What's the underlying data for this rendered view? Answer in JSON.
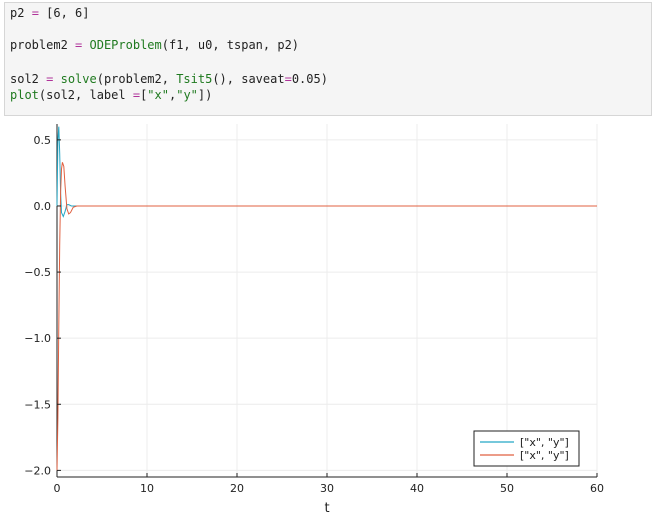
{
  "code_cell": {
    "lines": [
      {
        "segments": [
          {
            "text": "p2 ",
            "cls": ""
          },
          {
            "text": "=",
            "cls": "tok-op"
          },
          {
            "text": " [6, 6]",
            "cls": ""
          }
        ]
      },
      {
        "segments": []
      },
      {
        "segments": [
          {
            "text": "problem2 ",
            "cls": ""
          },
          {
            "text": "=",
            "cls": "tok-op"
          },
          {
            "text": " ",
            "cls": ""
          },
          {
            "text": "ODEProblem",
            "cls": "tok-fn"
          },
          {
            "text": "(f1, u0, tspan, p2)",
            "cls": ""
          }
        ]
      },
      {
        "segments": []
      },
      {
        "segments": [
          {
            "text": "sol2 ",
            "cls": ""
          },
          {
            "text": "=",
            "cls": "tok-op"
          },
          {
            "text": " ",
            "cls": ""
          },
          {
            "text": "solve",
            "cls": "tok-fn"
          },
          {
            "text": "(problem2, ",
            "cls": ""
          },
          {
            "text": "Tsit5",
            "cls": "tok-fn"
          },
          {
            "text": "(), saveat",
            "cls": ""
          },
          {
            "text": "=",
            "cls": "tok-op"
          },
          {
            "text": "0.05)",
            "cls": ""
          }
        ]
      },
      {
        "segments": [
          {
            "text": "plot",
            "cls": "tok-fn"
          },
          {
            "text": "(sol2, label ",
            "cls": ""
          },
          {
            "text": "=",
            "cls": "tok-op"
          },
          {
            "text": "[",
            "cls": ""
          },
          {
            "text": "\"x\"",
            "cls": "tok-str"
          },
          {
            "text": ",",
            "cls": ""
          },
          {
            "text": "\"y\"",
            "cls": "tok-str"
          },
          {
            "text": "])",
            "cls": ""
          }
        ]
      }
    ]
  },
  "chart_data": {
    "type": "line",
    "title": "",
    "xlabel": "t",
    "ylabel": "",
    "xlim": [
      0,
      60
    ],
    "ylim": [
      -2.05,
      0.62
    ],
    "xticks": [
      0,
      10,
      20,
      30,
      40,
      50,
      60
    ],
    "yticks": [
      -2.0,
      -1.5,
      -1.0,
      -0.5,
      0.0,
      0.5
    ],
    "ytick_labels": [
      "−2.0",
      "−1.5",
      "−1.0",
      "−0.5",
      "0.0",
      "0.5"
    ],
    "grid": true,
    "legend": "bottom-right",
    "series": [
      {
        "name": "[\"x\", \"y\"]",
        "color": "#25a7c5",
        "x": [
          0,
          0.1,
          0.2,
          0.3,
          0.4,
          0.5,
          0.7,
          0.9,
          1.1,
          1.3,
          1.6,
          2.0,
          3.0,
          60
        ],
        "y": [
          0.0,
          0.5,
          0.6,
          0.4,
          0.1,
          -0.05,
          -0.08,
          -0.04,
          0.01,
          0.01,
          0.0,
          0.0,
          0.0,
          0.0
        ]
      },
      {
        "name": "[\"x\", \"y\"]",
        "color": "#e06040",
        "x": [
          0,
          0.1,
          0.2,
          0.3,
          0.4,
          0.5,
          0.6,
          0.75,
          0.9,
          1.1,
          1.3,
          1.5,
          1.8,
          2.2,
          3.0,
          60
        ],
        "y": [
          -2.0,
          -1.6,
          -0.9,
          -0.3,
          0.1,
          0.28,
          0.33,
          0.3,
          0.15,
          -0.02,
          -0.06,
          -0.05,
          -0.01,
          0.0,
          0.0,
          0.0
        ]
      }
    ]
  }
}
